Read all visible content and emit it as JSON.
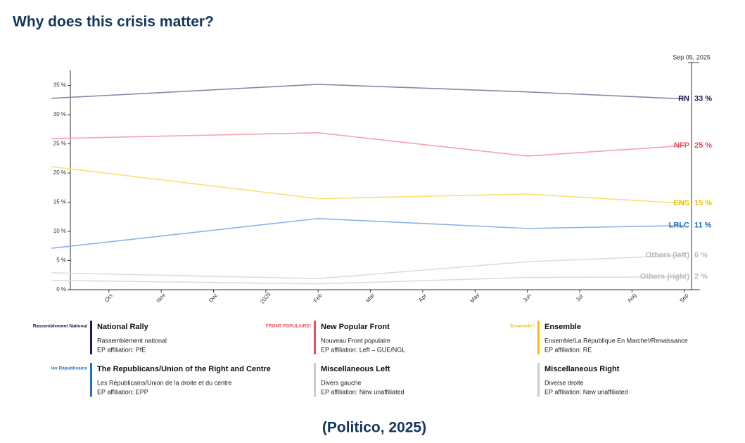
{
  "header": {
    "title": "Why does this crisis matter?"
  },
  "chart_data": {
    "type": "line",
    "date_marker": "Sep 05, 2025",
    "x": [
      -0.1,
      5,
      9,
      12
    ],
    "xlim": [
      -0.1,
      12.3
    ],
    "xticks": [
      {
        "value": 1,
        "label": "Oct"
      },
      {
        "value": 2,
        "label": "Nov"
      },
      {
        "value": 3,
        "label": "Dec"
      },
      {
        "value": 4,
        "label": "2025"
      },
      {
        "value": 5,
        "label": "Feb"
      },
      {
        "value": 6,
        "label": "Mar"
      },
      {
        "value": 7,
        "label": "Apr"
      },
      {
        "value": 8,
        "label": "May"
      },
      {
        "value": 9,
        "label": "Jun"
      },
      {
        "value": 10,
        "label": "Jul"
      },
      {
        "value": 11,
        "label": "Aug"
      },
      {
        "value": 12,
        "label": "Sep"
      }
    ],
    "ylim": [
      0,
      37.6
    ],
    "yticks": [
      {
        "value": 0,
        "label": "0 %"
      },
      {
        "value": 5,
        "label": "5 %"
      },
      {
        "value": 10,
        "label": "10 %"
      },
      {
        "value": 15,
        "label": "15 %"
      },
      {
        "value": 20,
        "label": "20 %"
      },
      {
        "value": 25,
        "label": "25 %"
      },
      {
        "value": 30,
        "label": "30 %"
      },
      {
        "value": 35,
        "label": "35 %"
      }
    ],
    "series": [
      {
        "name": "RN",
        "last_label": "33 %",
        "color": "#8a86a8",
        "label_color": "#1b1c4d",
        "values": [
          32.8,
          35.2,
          33.9,
          32.7
        ]
      },
      {
        "name": "NFP",
        "last_label": "25 %",
        "color": "#f5a3ab",
        "label_color": "#e8505b",
        "values": [
          25.9,
          26.9,
          22.9,
          24.7
        ]
      },
      {
        "name": "ENS",
        "last_label": "15 %",
        "color": "#f7e07a",
        "label_color": "#f0c000",
        "values": [
          21.1,
          15.6,
          16.4,
          14.8
        ]
      },
      {
        "name": "LRLC",
        "last_label": "11 %",
        "color": "#8ab4e8",
        "label_color": "#1f6fc4",
        "values": [
          7.1,
          12.2,
          10.5,
          11.0
        ]
      },
      {
        "name": "Others (left)",
        "last_label": "6 %",
        "color": "#dddddd",
        "label_color": "#bbbbbb",
        "values": [
          2.9,
          1.9,
          4.8,
          5.9
        ]
      },
      {
        "name": "Others (right)",
        "last_label": "2 %",
        "color": "#dddddd",
        "label_color": "#bbbbbb",
        "values": [
          1.6,
          1.0,
          2.1,
          2.2
        ]
      }
    ]
  },
  "parties": [
    {
      "logo": "Rassemblement National",
      "name": "National Rally",
      "subtitle": "Rassemblement national",
      "affiliation": "EP affiliation: PfE",
      "color": "#1b1c4d"
    },
    {
      "logo": "FRONT POPULAIRE!",
      "name": "New Popular Front",
      "subtitle": "Nouveau Front populaire",
      "affiliation": "EP affiliation: Left – GUE/NGL",
      "color": "#e8505b"
    },
    {
      "logo": "Ensemble !",
      "name": "Ensemble",
      "subtitle": "Ensemble/La République En Marche!/Renaissance",
      "affiliation": "EP affiliation: RE",
      "color": "#f0c000"
    },
    {
      "logo": "les Républicains",
      "name": "The Republicans/Union of the Right and Centre",
      "subtitle": "Les Républicains/Union de la droite et du centre",
      "affiliation": "EP affiliation: EPP",
      "color": "#1f6fc4"
    },
    {
      "logo": null,
      "name": "Miscellaneous Left",
      "subtitle": "Divers gauche",
      "affiliation": "EP affiliation: New unaffiliated",
      "color": "#cccccc"
    },
    {
      "logo": null,
      "name": "Miscellaneous Right",
      "subtitle": "Diverse droite",
      "affiliation": "EP affiliation: New unaffiliated",
      "color": "#cccccc"
    }
  ],
  "footer": {
    "caption": "(Politico, 2025)"
  }
}
